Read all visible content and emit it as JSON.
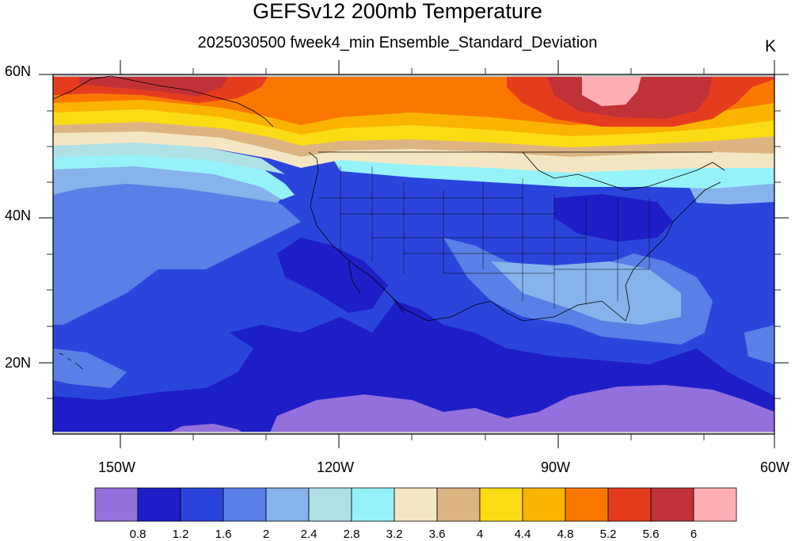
{
  "title": "GEFSv12 200mb Temperature",
  "subtitle": "2025030500 fweek4_min Ensemble_Standard_Deviation",
  "units": "K",
  "lat_labels": [
    "60N",
    "40N",
    "20N"
  ],
  "lon_labels": [
    "150W",
    "120W",
    "90W",
    "60W"
  ],
  "colorbar": {
    "colors": [
      "#9370db",
      "#1e1ec8",
      "#2b45dc",
      "#5a7fe6",
      "#87b2eb",
      "#aee0e6",
      "#96f2fa",
      "#f5e6c3",
      "#dcb482",
      "#fadc14",
      "#fab400",
      "#fa7800",
      "#e63c1e",
      "#c03238",
      "#ffafb4"
    ],
    "labels": [
      "0.8",
      "1.2",
      "1.6",
      "2",
      "2.4",
      "2.8",
      "3.2",
      "3.6",
      "4",
      "4.4",
      "4.8",
      "5.2",
      "5.6",
      "6"
    ]
  },
  "map": {
    "lat_range": [
      10,
      60
    ],
    "lon_range": [
      -160,
      -60
    ],
    "projection": "cylindrical-equidistant",
    "contour_bands": [
      {
        "level": "lt-0.8",
        "color": "#9370db"
      },
      {
        "level": "0.8-1.2",
        "color": "#1e1ec8"
      },
      {
        "level": "1.2-1.6",
        "color": "#2b45dc"
      },
      {
        "level": "1.6-2",
        "color": "#5a7fe6"
      },
      {
        "level": "2-2.4",
        "color": "#87b2eb"
      },
      {
        "level": "2.4-2.8",
        "color": "#aee0e6"
      },
      {
        "level": "2.8-3.2",
        "color": "#96f2fa"
      },
      {
        "level": "3.2-3.6",
        "color": "#f5e6c3"
      },
      {
        "level": "3.6-4",
        "color": "#dcb482"
      },
      {
        "level": "4-4.4",
        "color": "#fadc14"
      },
      {
        "level": "4.4-4.8",
        "color": "#fab400"
      },
      {
        "level": "4.8-5.2",
        "color": "#fa7800"
      },
      {
        "level": "5.2-5.6",
        "color": "#e63c1e"
      },
      {
        "level": "5.6-6",
        "color": "#c03238"
      },
      {
        "level": "gt-6",
        "color": "#ffafb4"
      }
    ]
  }
}
